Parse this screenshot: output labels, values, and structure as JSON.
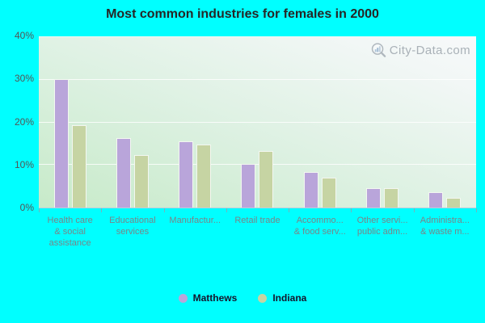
{
  "title": "Most common industries for females in 2000",
  "watermark": {
    "text": "City-Data.com"
  },
  "colors": {
    "background": "#00ffff",
    "matthews": "#b9a5da",
    "indiana": "#c6d4a3",
    "plot_gradient_start": "#c7eac9",
    "plot_gradient_end": "#f7f9fa",
    "gridline": "#ffffff",
    "title_text": "#262626",
    "axis_tick_text": "#545454",
    "category_text": "#798588",
    "legend_text": "#14142b"
  },
  "chart_data": {
    "type": "bar",
    "title": "Most common industries for females in 2000",
    "xlabel": "",
    "ylabel": "",
    "ylim": [
      0,
      40
    ],
    "grid": true,
    "legend_position": "bottom",
    "categories": [
      "Health care & social assistance",
      "Educational services",
      "Manufactur...",
      "Retail trade",
      "Accommo... & food serv...",
      "Other servi... public adm...",
      "Administra... & waste m..."
    ],
    "category_label_lines": [
      [
        "Health care",
        "& social",
        "assistance"
      ],
      [
        "Educational",
        "services"
      ],
      [
        "Manufactur..."
      ],
      [
        "Retail trade"
      ],
      [
        "Accommo...",
        "& food serv..."
      ],
      [
        "Other servi...",
        "public adm..."
      ],
      [
        "Administra...",
        "& waste m..."
      ]
    ],
    "series": [
      {
        "name": "Matthews",
        "color": "#b9a5da",
        "values": [
          30.1,
          16.4,
          15.6,
          10.3,
          8.4,
          4.5,
          3.6
        ]
      },
      {
        "name": "Indiana",
        "color": "#c6d4a3",
        "values": [
          19.4,
          12.4,
          14.8,
          13.2,
          7.1,
          4.6,
          2.2
        ]
      }
    ],
    "yticks": [
      {
        "label": "0%",
        "value": 0
      },
      {
        "label": "10%",
        "value": 10
      },
      {
        "label": "20%",
        "value": 20
      },
      {
        "label": "30%",
        "value": 30
      },
      {
        "label": "40%",
        "value": 40
      }
    ]
  }
}
